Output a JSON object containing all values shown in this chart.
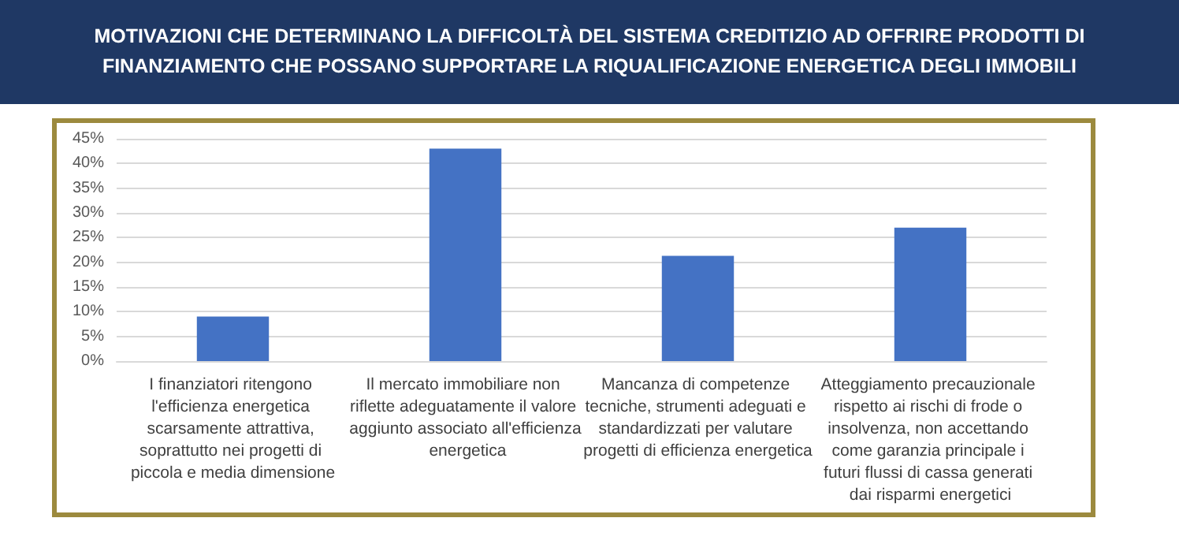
{
  "chart_data": {
    "type": "bar",
    "title": "MOTIVAZIONI CHE DETERMINANO LA DIFFICOLTÀ DEL SISTEMA CREDITIZIO AD OFFRIRE PRODOTTI DI FINANZIAMENTO CHE POSSANO SUPPORTARE LA RIQUALIFICAZIONE ENERGETICA DEGLI IMMOBILI",
    "categories": [
      "I finanziatori ritengono l'efficienza energetica scarsamente attrattiva, soprattutto nei progetti di piccola e media dimensione",
      "Il mercato immobiliare non riflette adeguatamente il valore aggiunto associato all'efficienza energetica",
      "Mancanza di competenze tecniche, strumenti adeguati e standardizzati per valutare progetti di efficienza energetica",
      "Atteggiamento precauzionale rispetto ai rischi di frode o insolvenza, non accettando come garanzia principale i futuri flussi di cassa generati dai risparmi energetici"
    ],
    "values": [
      9,
      43,
      21.3,
      27
    ],
    "color": "#4472c4",
    "ylim": [
      0,
      45
    ],
    "yticks": [
      {
        "value": 0,
        "label": "0%"
      },
      {
        "value": 5,
        "label": "5%"
      },
      {
        "value": 10,
        "label": "10%"
      },
      {
        "value": 15,
        "label": "15%"
      },
      {
        "value": 20,
        "label": "20%"
      },
      {
        "value": 25,
        "label": "25%"
      },
      {
        "value": 30,
        "label": "30%"
      },
      {
        "value": 35,
        "label": "35%"
      },
      {
        "value": 40,
        "label": "40%"
      },
      {
        "value": 45,
        "label": "45%"
      }
    ],
    "grid": "y"
  }
}
